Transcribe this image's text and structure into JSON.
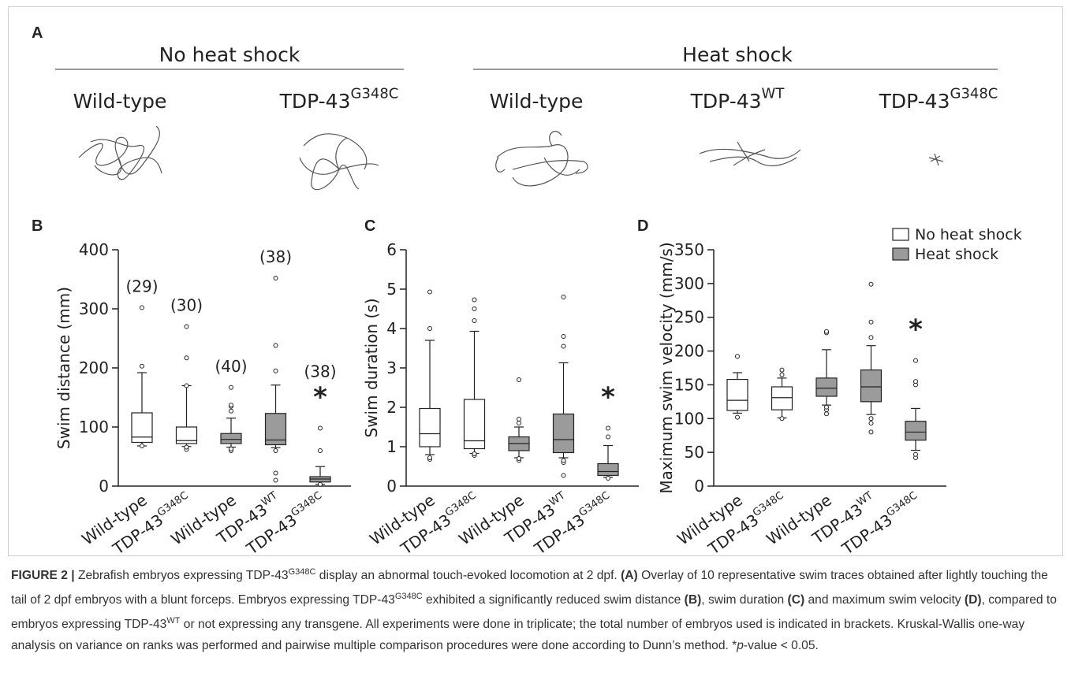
{
  "panel_a": {
    "label": "A",
    "groups": [
      {
        "title": "No heat shock",
        "labels": [
          "Wild-type",
          {
            "text": "TDP-43",
            "sup": "G348C"
          }
        ]
      },
      {
        "title": "Heat shock",
        "labels": [
          "Wild-type",
          {
            "text": "TDP-43",
            "sup": "WT"
          },
          {
            "text": "TDP-43",
            "sup": "G348C"
          }
        ]
      }
    ]
  },
  "chart_data": [
    {
      "type": "box",
      "panel": "B",
      "ylabel": "Swim distance (mm)",
      "ylim": [
        0,
        400
      ],
      "yticks": [
        0,
        100,
        200,
        300,
        400
      ],
      "categories": [
        "Wild-type",
        {
          "text": "TDP-43",
          "sup": "G348C"
        },
        "Wild-type",
        {
          "text": "TDP-43",
          "sup": "WT"
        },
        {
          "text": "TDP-43",
          "sup": "G348C"
        }
      ],
      "counts": [
        "(29)",
        "(30)",
        "(40)",
        "(38)",
        "(38)"
      ],
      "significance": [
        null,
        null,
        null,
        null,
        "*"
      ],
      "series": [
        {
          "color": "#ffffff",
          "boxes": [
            {
              "whislo": 68,
              "q1": 74,
              "med": 83,
              "q3": 124,
              "whishi": 192,
              "fliers": [
                68,
                203,
                302
              ]
            },
            {
              "whislo": 67,
              "q1": 72,
              "med": 77,
              "q3": 100,
              "whishi": 170,
              "fliers": [
                62,
                66,
                170,
                217,
                270
              ]
            }
          ]
        },
        {
          "color": "#9b9b9b",
          "boxes": [
            {
              "whislo": 66,
              "q1": 72,
              "med": 79,
              "q3": 89,
              "whishi": 115,
              "fliers": [
                60,
                63,
                127,
                135,
                137,
                167
              ]
            },
            {
              "whislo": 65,
              "q1": 70,
              "med": 78,
              "q3": 123,
              "whishi": 171,
              "fliers": [
                10,
                22,
                60,
                195,
                238,
                352
              ]
            },
            {
              "whislo": 3,
              "q1": 7,
              "med": 12,
              "q3": 16,
              "whishi": 33,
              "fliers": [
                3,
                60,
                98
              ]
            }
          ]
        }
      ]
    },
    {
      "type": "box",
      "panel": "C",
      "ylabel": "Swim duration (s)",
      "ylim": [
        0,
        6
      ],
      "yticks": [
        0,
        1,
        2,
        3,
        4,
        5,
        6
      ],
      "categories": [
        "Wild-type",
        {
          "text": "TDP-43",
          "sup": "G348C"
        },
        "Wild-type",
        {
          "text": "TDP-43",
          "sup": "WT"
        },
        {
          "text": "TDP-43",
          "sup": "G348C"
        }
      ],
      "significance": [
        null,
        null,
        null,
        null,
        "*"
      ],
      "series": [
        {
          "color": "#ffffff",
          "boxes": [
            {
              "whislo": 0.8,
              "q1": 1.0,
              "med": 1.33,
              "q3": 1.97,
              "whishi": 3.7,
              "fliers": [
                0.68,
                0.72,
                4.0,
                4.93
              ]
            },
            {
              "whislo": 0.83,
              "q1": 0.95,
              "med": 1.15,
              "q3": 2.2,
              "whishi": 3.93,
              "fliers": [
                0.78,
                0.82,
                4.2,
                4.5,
                4.73
              ]
            }
          ]
        },
        {
          "color": "#9b9b9b",
          "boxes": [
            {
              "whislo": 0.72,
              "q1": 0.9,
              "med": 1.08,
              "q3": 1.25,
              "whishi": 1.5,
              "fliers": [
                0.65,
                0.7,
                1.6,
                1.7,
                2.7
              ]
            },
            {
              "whislo": 0.72,
              "q1": 0.85,
              "med": 1.18,
              "q3": 1.83,
              "whishi": 3.13,
              "fliers": [
                0.27,
                0.6,
                0.65,
                3.55,
                3.8,
                4.8
              ]
            },
            {
              "whislo": 0.22,
              "q1": 0.27,
              "med": 0.37,
              "q3": 0.57,
              "whishi": 1.03,
              "fliers": [
                0.2,
                1.25,
                1.47
              ]
            }
          ]
        }
      ]
    },
    {
      "type": "box",
      "panel": "D",
      "ylabel": "Maximum swim velocity (mm/s)",
      "ylim": [
        0,
        350
      ],
      "yticks": [
        0,
        50,
        100,
        150,
        200,
        250,
        300,
        350
      ],
      "categories": [
        "Wild-type",
        {
          "text": "TDP-43",
          "sup": "G348C"
        },
        "Wild-type",
        {
          "text": "TDP-43",
          "sup": "WT"
        },
        {
          "text": "TDP-43",
          "sup": "G348C"
        }
      ],
      "significance": [
        null,
        null,
        null,
        null,
        "*"
      ],
      "series": [
        {
          "name": "No heat shock",
          "color": "#ffffff",
          "boxes": [
            {
              "whislo": 108,
              "q1": 112,
              "med": 127,
              "q3": 158,
              "whishi": 168,
              "fliers": [
                102,
                192
              ]
            },
            {
              "whislo": 101,
              "q1": 113,
              "med": 131,
              "q3": 147,
              "whishi": 160,
              "fliers": [
                100,
                165,
                172
              ]
            }
          ]
        },
        {
          "name": "Heat shock",
          "color": "#9b9b9b",
          "boxes": [
            {
              "whislo": 120,
              "q1": 133,
              "med": 145,
              "q3": 160,
              "whishi": 202,
              "fliers": [
                107,
                113,
                117,
                227,
                229
              ]
            },
            {
              "whislo": 106,
              "q1": 125,
              "med": 147,
              "q3": 172,
              "whishi": 208,
              "fliers": [
                80,
                93,
                100,
                220,
                243,
                299
              ]
            },
            {
              "whislo": 53,
              "q1": 68,
              "med": 80,
              "q3": 96,
              "whishi": 115,
              "fliers": [
                42,
                47,
                150,
                155,
                186
              ]
            }
          ]
        }
      ]
    }
  ],
  "caption": [
    "FIGURE 2 |",
    " Zebrafish embryos expressing TDP-43",
    "G348C",
    " display an abnormal touch-evoked locomotion at 2 dpf. ",
    "(A)",
    " Overlay of 10 representative swim traces obtained after lightly touching the tail of 2 dpf embryos with a blunt forceps. Embryos expressing TDP-43",
    "G348C",
    " exhibited a significantly reduced swim distance ",
    "(B)",
    ", swim duration ",
    "(C)",
    " and maximum swim velocity ",
    "(D)",
    ", compared to embryos expressing TDP-43",
    "WT",
    " or not expressing any transgene. All experiments were done in triplicate; the total number of embryos used is indicated in brackets. Kruskal-Wallis one-way analysis on variance on ranks was performed and pairwise multiple comparison procedures were done according to Dunn’s method. *",
    "p",
    "-value < 0.05."
  ]
}
